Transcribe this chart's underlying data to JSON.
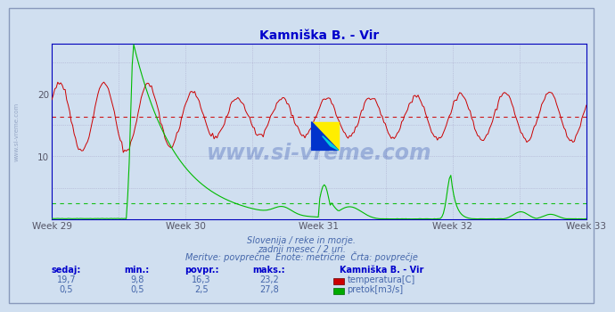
{
  "title": "Kamniška B. - Vir",
  "title_color": "#0000cc",
  "bg_color": "#d0dff0",
  "plot_bg_color": "#d0dff0",
  "grid_color": "#aaaacc",
  "axis_color": "#0000bb",
  "x_labels": [
    "Week 29",
    "Week 30",
    "Week 31",
    "Week 32",
    "Week 33"
  ],
  "x_label_color": "#444466",
  "ylim": [
    0,
    28
  ],
  "yticks": [
    10,
    20
  ],
  "temp_color": "#cc0000",
  "flow_color": "#00bb00",
  "avg_temp_color": "#cc0000",
  "avg_flow_color": "#00bb00",
  "avg_temp": 16.3,
  "avg_flow": 2.5,
  "watermark": "www.si-vreme.com",
  "subtitle1": "Slovenija / reke in morje.",
  "subtitle2": "zadnji mesec / 2 uri.",
  "subtitle3": "Meritve: povprečne  Enote: metrične  Črta: povprečje",
  "subtitle_color": "#4466aa",
  "table_header_color": "#0000cc",
  "table_value_color": "#4466aa",
  "n_points": 360,
  "temp_sedaj": "19,7",
  "temp_min": "9,8",
  "temp_povpr": "16,3",
  "temp_maks": "23,2",
  "flow_sedaj": "0,5",
  "flow_min": "0,5",
  "flow_povpr": "2,5",
  "flow_maks": "27,8"
}
